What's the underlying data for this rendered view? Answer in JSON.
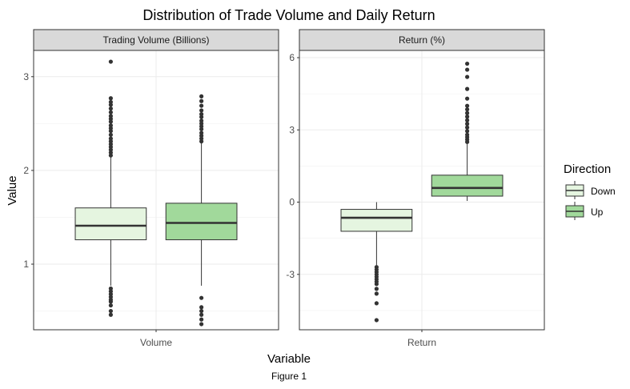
{
  "caption": "Figure 1",
  "chart_data": {
    "type": "boxplot",
    "title": "Distribution of Trade Volume and Daily Return",
    "xlabel": "Variable",
    "ylabel": "Value",
    "legend": {
      "title": "Direction",
      "position": "right",
      "entries": [
        {
          "name": "Down",
          "color": "#e5f5e0"
        },
        {
          "name": "Up",
          "color": "#a1d99b"
        }
      ]
    },
    "grid": true,
    "panels": [
      {
        "strip": "Trading Volume (Billions)",
        "x_category": "Volume",
        "ylim": [
          0.3,
          3.28
        ],
        "yticks": [
          1,
          2,
          3
        ],
        "ytick_labels": [
          "1",
          "2",
          "3"
        ],
        "boxes": [
          {
            "group": "Down",
            "min": 0.77,
            "q1": 1.26,
            "median": 1.41,
            "q3": 1.6,
            "max": 2.14,
            "outliers": [
              0.46,
              0.5,
              0.56,
              0.6,
              0.62,
              0.65,
              0.68,
              0.71,
              0.74,
              2.16,
              2.19,
              2.22,
              2.25,
              2.28,
              2.31,
              2.34,
              2.38,
              2.42,
              2.45,
              2.48,
              2.52,
              2.55,
              2.58,
              2.62,
              2.66,
              2.7,
              2.73,
              2.77,
              3.16
            ]
          },
          {
            "group": "Up",
            "min": 0.77,
            "q1": 1.26,
            "median": 1.44,
            "q3": 1.65,
            "max": 2.29,
            "outliers": [
              0.36,
              0.41,
              0.46,
              0.5,
              0.54,
              0.64,
              2.31,
              2.34,
              2.37,
              2.4,
              2.44,
              2.47,
              2.5,
              2.53,
              2.57,
              2.6,
              2.64,
              2.69,
              2.74,
              2.79
            ]
          }
        ]
      },
      {
        "strip": "Return (%)",
        "x_category": "Return",
        "ylim": [
          -5.3,
          6.3
        ],
        "yticks": [
          -3,
          0,
          3,
          6
        ],
        "ytick_labels": [
          "-3",
          "0",
          "3",
          "6"
        ],
        "boxes": [
          {
            "group": "Down",
            "min": -2.62,
            "q1": -1.21,
            "median": -0.65,
            "q3": -0.3,
            "max": 0.0,
            "outliers": [
              -2.7,
              -2.8,
              -2.9,
              -3.0,
              -3.1,
              -3.2,
              -3.3,
              -3.4,
              -3.6,
              -3.8,
              -4.2,
              -4.9
            ]
          },
          {
            "group": "Up",
            "min": 0.05,
            "q1": 0.25,
            "median": 0.59,
            "q3": 1.12,
            "max": 2.43,
            "outliers": [
              2.5,
              2.6,
              2.7,
              2.8,
              2.95,
              3.1,
              3.25,
              3.4,
              3.55,
              3.7,
              3.85,
              4.0,
              4.3,
              4.7,
              5.2,
              5.5,
              5.75
            ]
          }
        ]
      }
    ]
  }
}
